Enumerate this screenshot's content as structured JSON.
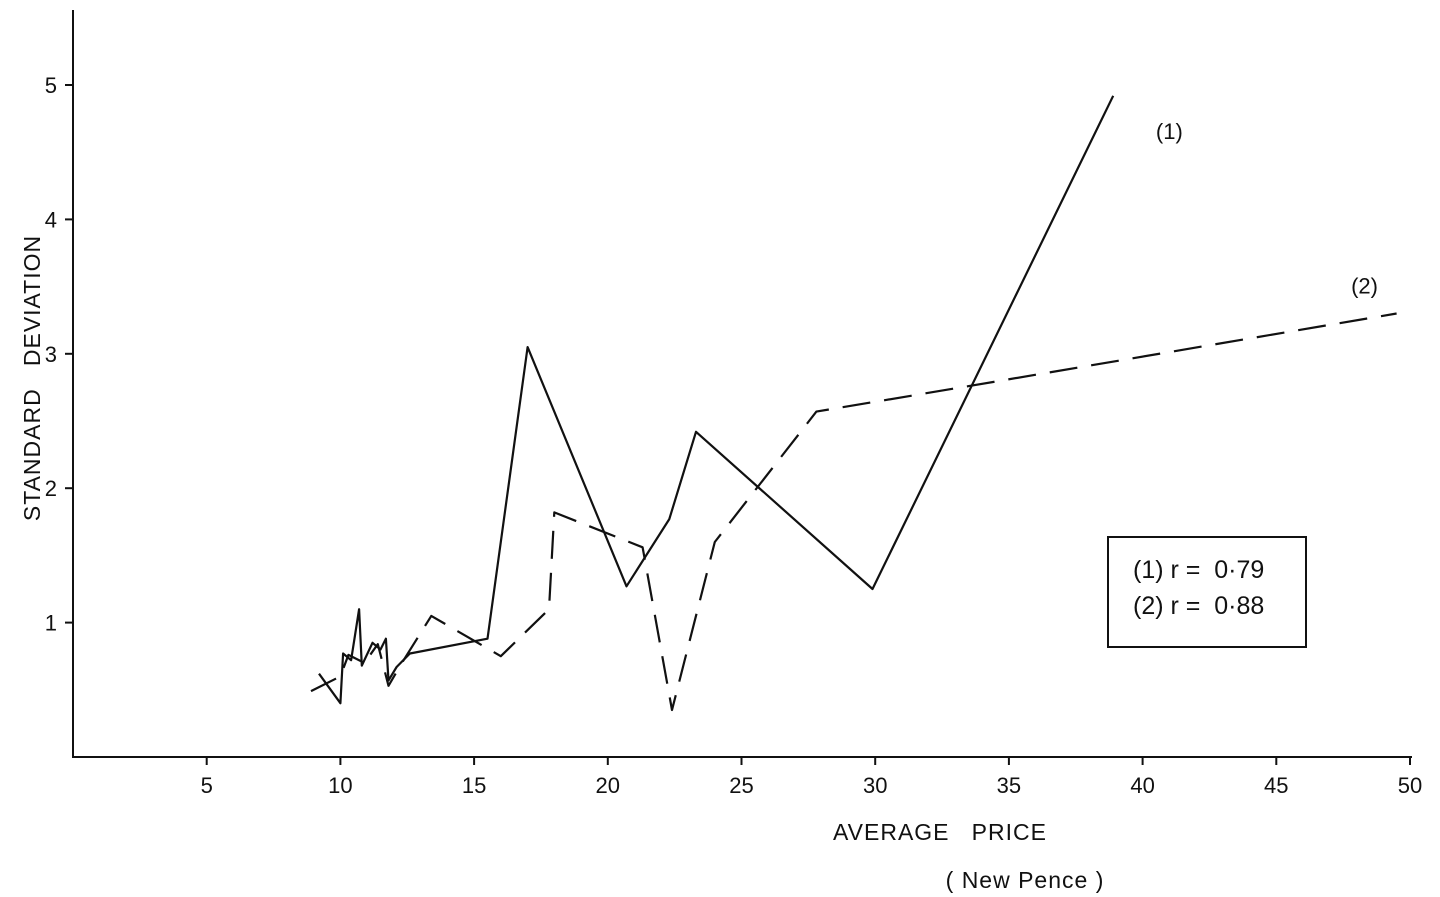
{
  "chart_data": {
    "type": "line",
    "xlabel": "AVERAGE   PRICE",
    "xlabel_unit": "( New Pence )",
    "ylabel": "STANDARD   DEVIATION",
    "xlim": [
      0,
      50
    ],
    "ylim": [
      0,
      5.5
    ],
    "x_ticks": [
      5,
      10,
      15,
      20,
      25,
      30,
      35,
      40,
      45,
      50
    ],
    "y_ticks": [
      1,
      2,
      3,
      4,
      5
    ],
    "grid": false,
    "legend_position": "right",
    "series": [
      {
        "name": "(1)",
        "style": "solid",
        "color": "#111111",
        "points": [
          [
            9.2,
            0.62
          ],
          [
            10.0,
            0.4
          ],
          [
            10.1,
            0.77
          ],
          [
            10.4,
            0.72
          ],
          [
            10.7,
            1.1
          ],
          [
            10.8,
            0.68
          ],
          [
            11.2,
            0.85
          ],
          [
            11.5,
            0.8
          ],
          [
            11.7,
            0.88
          ],
          [
            11.8,
            0.57
          ],
          [
            12.1,
            0.67
          ],
          [
            12.6,
            0.77
          ],
          [
            15.5,
            0.88
          ],
          [
            17.0,
            3.05
          ],
          [
            20.7,
            1.27
          ],
          [
            22.3,
            1.77
          ],
          [
            23.3,
            2.42
          ],
          [
            29.9,
            1.25
          ],
          [
            38.9,
            4.92
          ]
        ]
      },
      {
        "name": "(2)",
        "style": "dashed",
        "color": "#111111",
        "points": [
          [
            8.9,
            0.49
          ],
          [
            10.0,
            0.6
          ],
          [
            10.3,
            0.76
          ],
          [
            10.9,
            0.7
          ],
          [
            11.4,
            0.84
          ],
          [
            11.8,
            0.53
          ],
          [
            12.3,
            0.7
          ],
          [
            13.4,
            1.05
          ],
          [
            16.0,
            0.75
          ],
          [
            17.8,
            1.1
          ],
          [
            18.0,
            1.82
          ],
          [
            21.3,
            1.56
          ],
          [
            22.4,
            0.35
          ],
          [
            24.0,
            1.6
          ],
          [
            27.8,
            2.57
          ],
          [
            33.5,
            2.76
          ],
          [
            49.5,
            3.3
          ]
        ]
      }
    ],
    "series_labels": [
      {
        "text": "(1)",
        "x": 41.0,
        "y": 4.6
      },
      {
        "text": "(2)",
        "x": 48.3,
        "y": 3.45
      }
    ],
    "legend": {
      "lines": [
        "(1) r =  0·79",
        "(2) r =  0·88"
      ]
    }
  }
}
